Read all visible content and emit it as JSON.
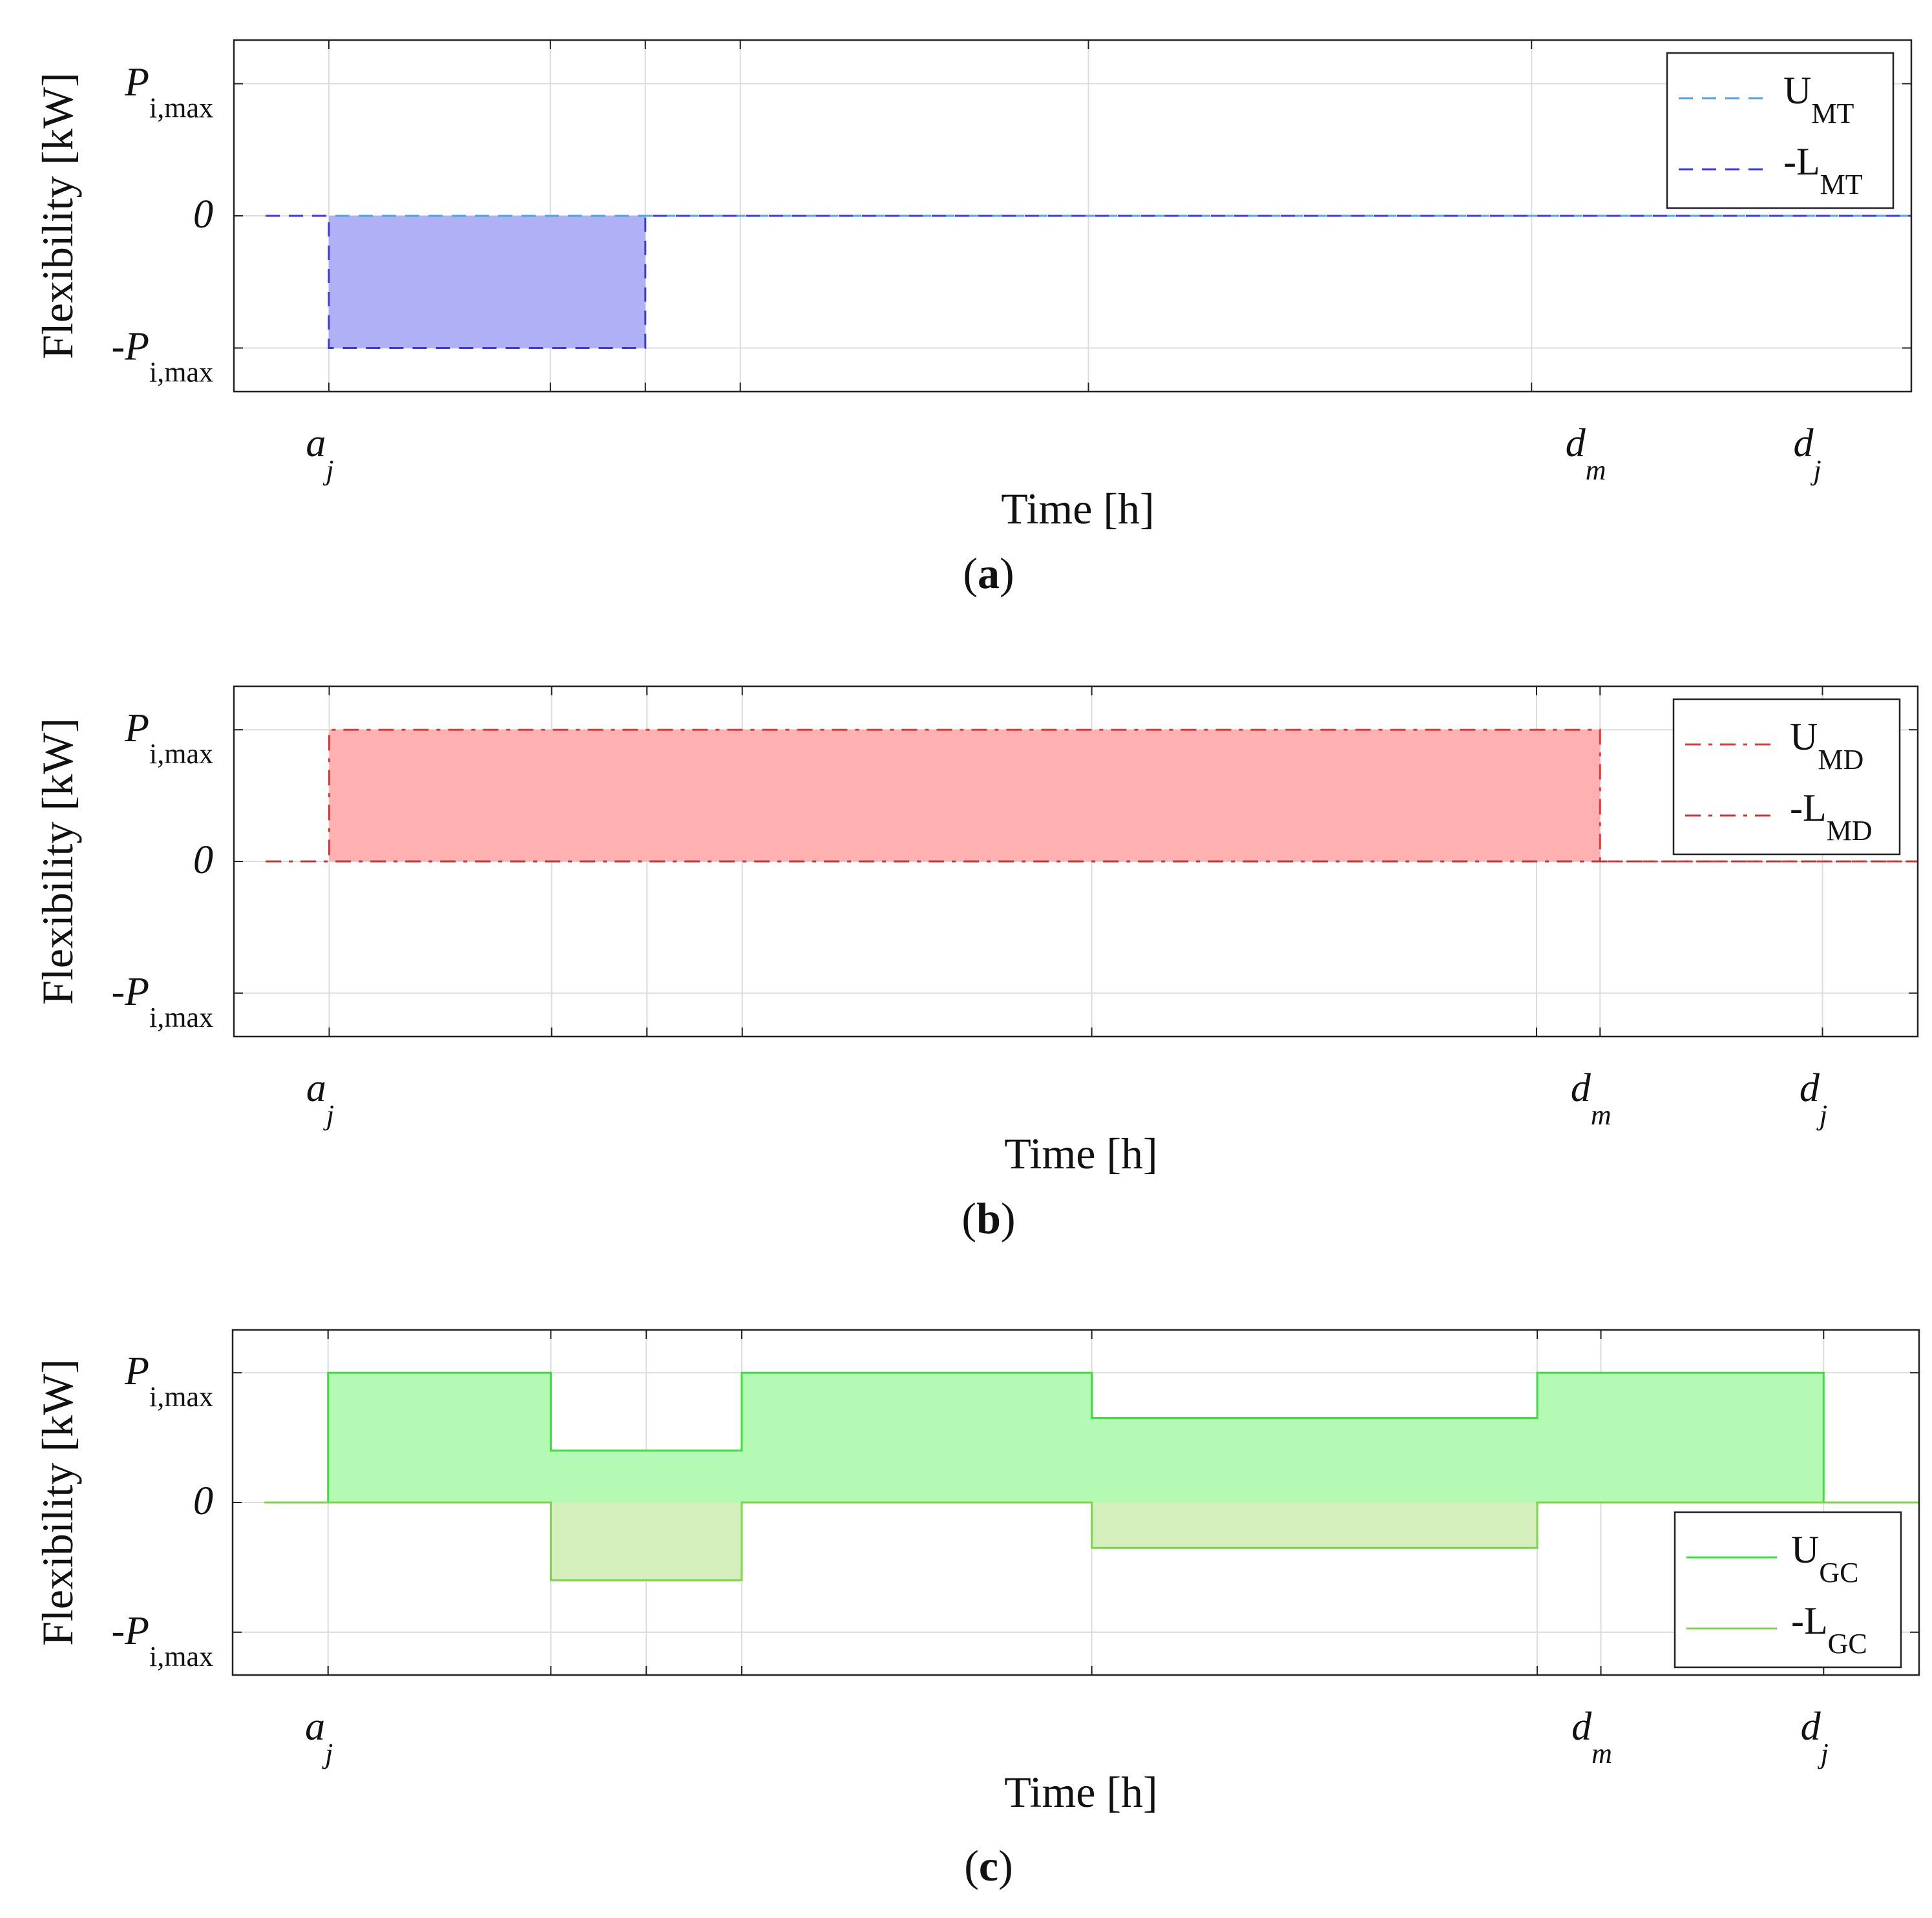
{
  "figure": {
    "panels": [
      "a",
      "b",
      "c"
    ]
  },
  "chart_data": [
    {
      "type": "area",
      "panel_label": "a",
      "xlabel": "Time [h]",
      "ylabel": "Flexibility [kW]",
      "xlim": [
        0,
        26.5
      ],
      "ylim": [
        -1.33,
        1.33
      ],
      "grid": true,
      "legend_position": "top-right",
      "y_ticks": [
        {
          "value": 1,
          "prefix": "",
          "main": "P",
          "sub": "i,max"
        },
        {
          "value": 0,
          "prefix": "",
          "main": "0",
          "sub": ""
        },
        {
          "value": -1,
          "prefix": "-",
          "main": "P",
          "sub": "i,max"
        }
      ],
      "x_grid": [
        1.5,
        5,
        6.5,
        8,
        13.5,
        20.5
      ],
      "x_labels": [
        {
          "value": 1.5,
          "main": "a",
          "sub": "j"
        },
        {
          "value": 21.5,
          "main": "d",
          "sub": "m"
        },
        {
          "value": 25,
          "main": "d",
          "sub": "j"
        }
      ],
      "series": [
        {
          "name": "U",
          "sub": "MT",
          "color": "#4da6e0",
          "dash": "dashed",
          "fill": null,
          "x": [
            0.5,
            26.5
          ],
          "values": [
            0,
            0
          ]
        },
        {
          "name": "-L",
          "sub": "MT",
          "color": "#3a3ae0",
          "dash": "dashed",
          "fill": "#b0b0f7",
          "x": [
            0.5,
            1.5,
            1.5,
            6.5,
            6.5,
            26.5
          ],
          "values": [
            0,
            0,
            -1,
            -1,
            0,
            0
          ]
        }
      ]
    },
    {
      "type": "area",
      "panel_label": "b",
      "xlabel": "Time [h]",
      "ylabel": "Flexibility [kW]",
      "xlim": [
        0,
        26.5
      ],
      "ylim": [
        -1.33,
        1.33
      ],
      "grid": true,
      "legend_position": "top-right",
      "y_ticks": [
        {
          "value": 1,
          "prefix": "",
          "main": "P",
          "sub": "i,max"
        },
        {
          "value": 0,
          "prefix": "",
          "main": "0",
          "sub": ""
        },
        {
          "value": -1,
          "prefix": "-",
          "main": "P",
          "sub": "i,max"
        }
      ],
      "x_grid": [
        1.5,
        5,
        6.5,
        8,
        13.5,
        20.5,
        21.5,
        25
      ],
      "x_labels": [
        {
          "value": 1.5,
          "main": "a",
          "sub": "j"
        },
        {
          "value": 21.5,
          "main": "d",
          "sub": "m"
        },
        {
          "value": 25,
          "main": "d",
          "sub": "j"
        }
      ],
      "series": [
        {
          "name": "U",
          "sub": "MD",
          "color": "#e03a3a",
          "dash": "dashdot",
          "fill": "#ffb0b0",
          "x": [
            0.5,
            1.5,
            1.5,
            21.5,
            21.5,
            26.5
          ],
          "values": [
            0,
            0,
            1,
            1,
            0,
            0
          ]
        },
        {
          "name": "-L",
          "sub": "MD",
          "color": "#c03a3a",
          "dash": "dashdot",
          "fill": null,
          "x": [
            0.5,
            26.5
          ],
          "values": [
            0,
            0
          ]
        }
      ]
    },
    {
      "type": "area",
      "panel_label": "c",
      "xlabel": "Time [h]",
      "ylabel": "Flexibility [kW]",
      "xlim": [
        0,
        26.5
      ],
      "ylim": [
        -1.33,
        1.33
      ],
      "grid": true,
      "legend_position": "bottom-right",
      "y_ticks": [
        {
          "value": 1,
          "prefix": "",
          "main": "P",
          "sub": "i,max"
        },
        {
          "value": 0,
          "prefix": "",
          "main": "0",
          "sub": ""
        },
        {
          "value": -1,
          "prefix": "-",
          "main": "P",
          "sub": "i,max"
        }
      ],
      "x_grid": [
        1.5,
        5,
        6.5,
        8,
        13.5,
        20.5,
        21.5,
        25
      ],
      "x_labels": [
        {
          "value": 1.5,
          "main": "a",
          "sub": "j"
        },
        {
          "value": 21.5,
          "main": "d",
          "sub": "m"
        },
        {
          "value": 25,
          "main": "d",
          "sub": "j"
        }
      ],
      "series": [
        {
          "name": "U",
          "sub": "GC",
          "color": "#3ce03c",
          "dash": "solid",
          "fill": "#b4fab4",
          "x": [
            0.5,
            1.5,
            1.5,
            5,
            5,
            8,
            8,
            13.5,
            13.5,
            20.5,
            20.5,
            25,
            25,
            26.5
          ],
          "values": [
            0,
            0,
            1,
            1,
            0.4,
            0.4,
            1,
            1,
            0.65,
            0.65,
            1,
            1,
            0,
            0
          ]
        },
        {
          "name": "-L",
          "sub": "GC",
          "color": "#7cd44a",
          "dash": "solid",
          "fill": "#d4eebc",
          "x": [
            0.5,
            5,
            5,
            8,
            8,
            13.5,
            13.5,
            20.5,
            20.5,
            26.5
          ],
          "values": [
            0,
            0,
            -0.6,
            -0.6,
            0,
            0,
            -0.35,
            -0.35,
            0,
            0
          ]
        }
      ]
    }
  ]
}
